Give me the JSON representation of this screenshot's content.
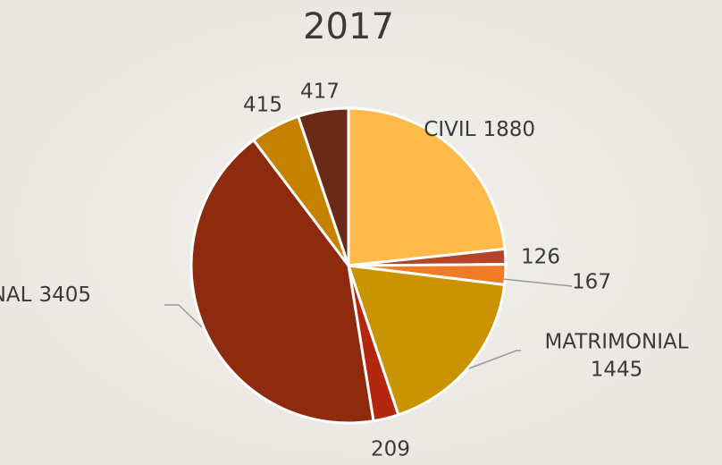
{
  "chart_data": {
    "type": "pie",
    "title": "2017",
    "categories": [
      "CIVIL",
      null,
      null,
      "MATRIMONIAL",
      null,
      "PENAL",
      null,
      null
    ],
    "values": [
      1880,
      126,
      167,
      1445,
      209,
      3405,
      415,
      417
    ],
    "colors": [
      "#FDB94A",
      "#B5452A",
      "#F07A28",
      "#C99400",
      "#B5260F",
      "#8E2A0E",
      "#C48200",
      "#6B2A17"
    ]
  }
}
